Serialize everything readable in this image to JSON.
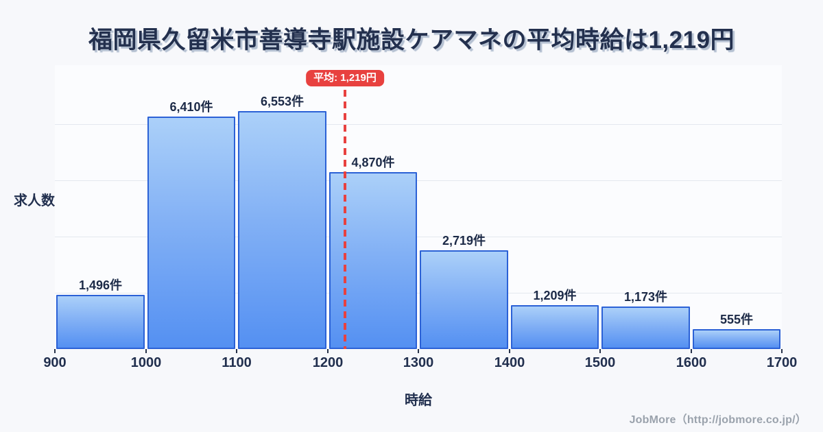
{
  "title": "福岡県久留米市善導寺駅施設ケアマネの平均時給は1,219円",
  "chart_data": {
    "type": "bar",
    "subtype": "histogram",
    "title": "福岡県久留米市善導寺駅施設ケアマネの平均時給は1,219円",
    "xlabel": "時給",
    "ylabel": "求人数",
    "x_range": [
      900,
      1700
    ],
    "bin_edges": [
      900,
      1000,
      1100,
      1200,
      1300,
      1400,
      1500,
      1600,
      1700
    ],
    "x_tick_labels": [
      "900",
      "1000",
      "1100",
      "1200",
      "1300",
      "1400",
      "1500",
      "1600",
      "1700"
    ],
    "values": [
      1496,
      6410,
      6553,
      4870,
      2719,
      1209,
      1173,
      555
    ],
    "value_labels": [
      "1,496件",
      "6,410件",
      "6,553件",
      "4,870件",
      "2,719件",
      "1,209件",
      "1,173件",
      "555件"
    ],
    "average": {
      "value": 1219,
      "label": "平均: 1,219円"
    },
    "grid": true,
    "legend": false,
    "colors": {
      "bar_fill_top": "#abd0f9",
      "bar_fill_bottom": "#5490f2",
      "bar_border": "#2b61d6",
      "average_line": "#e8413f",
      "badge_bg": "#e8413f",
      "badge_text": "#ffffff",
      "title_text": "#23304e",
      "footer_text": "#9aa2ac"
    }
  },
  "footer": {
    "credit": "JobMore（http://jobmore.co.jp/）"
  }
}
